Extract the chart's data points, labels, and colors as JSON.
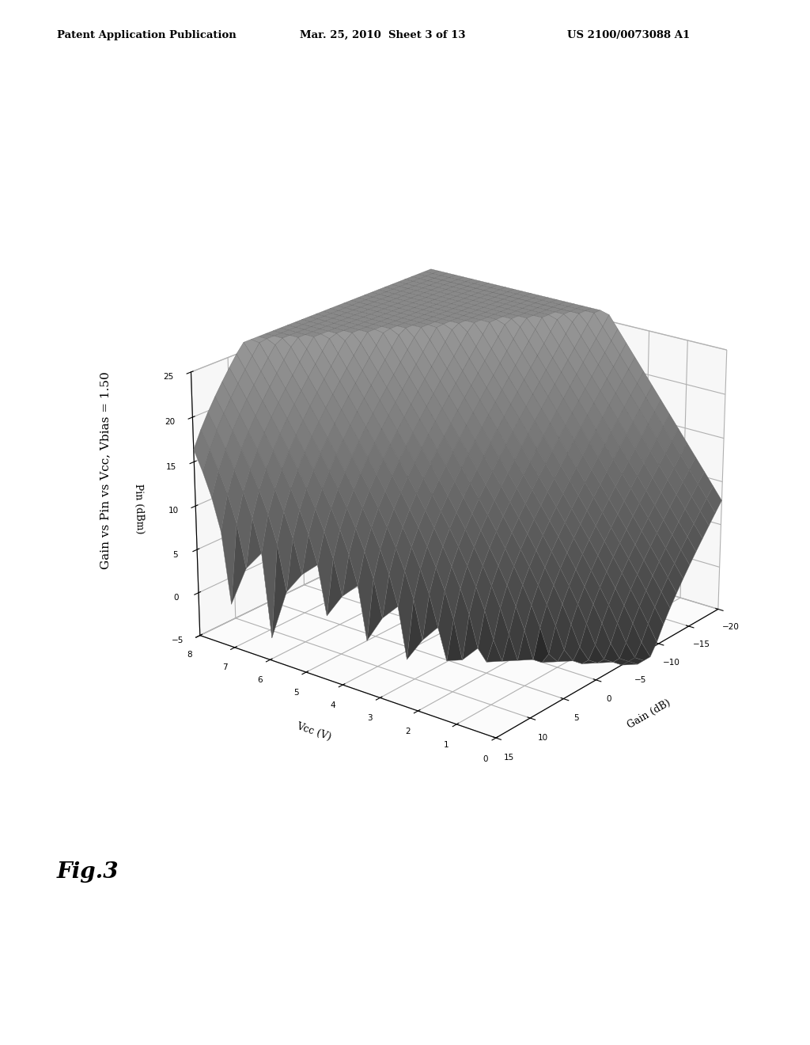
{
  "title": "Gain vs Pin vs Vcc, Vbias = 1.50",
  "xlabel": "Gain (dB)",
  "ylabel": "Vcc (V)",
  "zlabel": "Pin (dBm)",
  "x_ticks": [
    15,
    10,
    5,
    0,
    -5,
    -10,
    -15,
    -20
  ],
  "y_ticks": [
    0,
    1,
    2,
    3,
    4,
    5,
    6,
    7,
    8
  ],
  "z_ticks": [
    -5,
    0,
    5,
    10,
    15,
    20,
    25
  ],
  "fig_label": "Fig.3",
  "side_label": "Gain vs Pin vs Vcc, Vbias = 1.50",
  "header_left": "Patent Application Publication",
  "header_center": "Mar. 25, 2010  Sheet 3 of 13",
  "header_right": "US 2100/0073088 A1",
  "background_color": "#ffffff",
  "elev": 22,
  "azim": -142
}
